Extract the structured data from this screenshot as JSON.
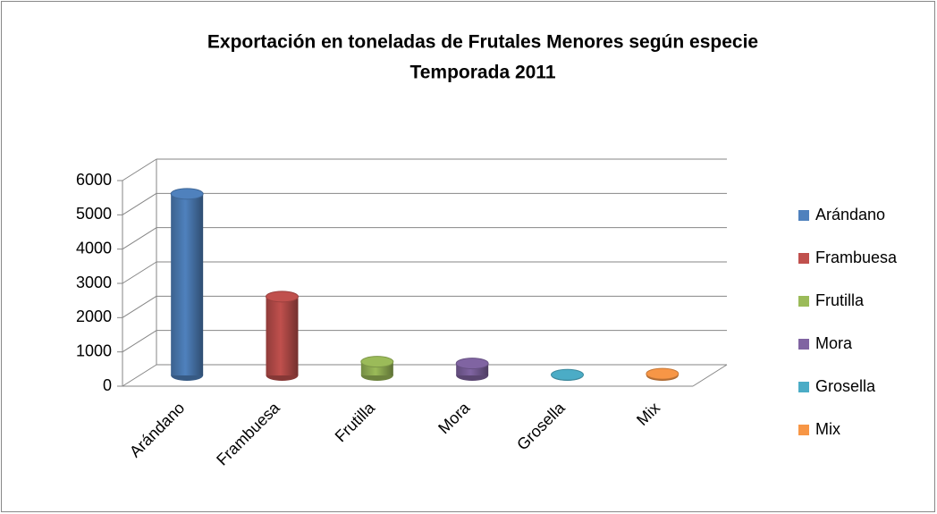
{
  "chart_data": {
    "type": "bar",
    "title": "Exportación en toneladas de Frutales Menores según especie",
    "subtitle": "Temporada 2011",
    "categories": [
      "Arándano",
      "Frambuesa",
      "Frutilla",
      "Mora",
      "Grosella",
      "Mix"
    ],
    "values": [
      5300,
      2300,
      400,
      350,
      20,
      50
    ],
    "colors": [
      "#4f81bd",
      "#c0504d",
      "#9bbb59",
      "#8064a2",
      "#4bacc6",
      "#f79646"
    ],
    "ylim": [
      0,
      6000
    ],
    "yticks": [
      0,
      1000,
      2000,
      3000,
      4000,
      5000,
      6000
    ],
    "grid": true,
    "legend": "right"
  }
}
